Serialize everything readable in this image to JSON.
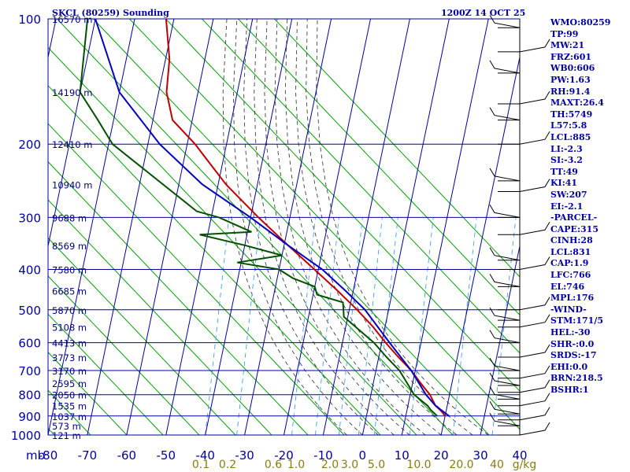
{
  "header": {
    "station": "SKCL (80259) Sounding",
    "time": "1200Z 14 OCT 25"
  },
  "colors": {
    "grid": "#0000a0",
    "dry_adiabat": "#00a000",
    "moist_adiabat": "#404040",
    "mixing_ratio": "#40a0ff",
    "temperature": "#c00000",
    "dewpoint": "#005000",
    "parcel": "#0000c0"
  },
  "chart_data": {
    "type": "skew-t",
    "title": "SKCL (80259) Sounding",
    "pressure_axis": {
      "unit": "mb",
      "ticks": [
        100,
        200,
        300,
        400,
        500,
        600,
        700,
        800,
        900,
        1000
      ],
      "range": [
        100,
        1000
      ]
    },
    "height_labels": [
      {
        "p": 100,
        "label": "16570 m"
      },
      {
        "p": 150,
        "label": "14190 m"
      },
      {
        "p": 200,
        "label": "12410 m"
      },
      {
        "p": 250,
        "label": "10940 m"
      },
      {
        "p": 300,
        "label": "9688 m"
      },
      {
        "p": 350,
        "label": "8569 m"
      },
      {
        "p": 400,
        "label": "7580 m"
      },
      {
        "p": 450,
        "label": "6685 m"
      },
      {
        "p": 500,
        "label": "5870 m"
      },
      {
        "p": 550,
        "label": "5108 m"
      },
      {
        "p": 600,
        "label": "4413 m"
      },
      {
        "p": 650,
        "label": "3773 m"
      },
      {
        "p": 700,
        "label": "3170 m"
      },
      {
        "p": 750,
        "label": "2595 m"
      },
      {
        "p": 800,
        "label": "2050 m"
      },
      {
        "p": 850,
        "label": "1535 m"
      },
      {
        "p": 900,
        "label": "1037 m"
      },
      {
        "p": 950,
        "label": "573 m"
      },
      {
        "p": 1000,
        "label": "121 m"
      }
    ],
    "temperature_axis": {
      "unit_label": "mb",
      "ticks": [
        -80,
        -70,
        -60,
        -50,
        -40,
        -30,
        -20,
        -10,
        0,
        10,
        20,
        30,
        40
      ],
      "labels": [
        "-80",
        "-70",
        "-60",
        "-50",
        "-40",
        "-30",
        "-20",
        "-10",
        "0",
        "10",
        "20",
        "30",
        "40"
      ]
    },
    "mixing_ratio_labels": [
      "0.1",
      "0.2",
      "0.6",
      "1.0",
      "2.0",
      "3.0",
      "5.0",
      "10.0",
      "20.0",
      "40",
      "g/kg"
    ],
    "series": [
      {
        "name": "temperature",
        "points": [
          {
            "p": 100,
            "t": -72
          },
          {
            "p": 125,
            "t": -69
          },
          {
            "p": 150,
            "t": -68
          },
          {
            "p": 175,
            "t": -65
          },
          {
            "p": 200,
            "t": -58
          },
          {
            "p": 250,
            "t": -48
          },
          {
            "p": 300,
            "t": -38
          },
          {
            "p": 350,
            "t": -29
          },
          {
            "p": 400,
            "t": -21
          },
          {
            "p": 450,
            "t": -14
          },
          {
            "p": 500,
            "t": -8
          },
          {
            "p": 550,
            "t": -3
          },
          {
            "p": 600,
            "t": 1
          },
          {
            "p": 650,
            "t": 5
          },
          {
            "p": 700,
            "t": 9
          },
          {
            "p": 750,
            "t": 12
          },
          {
            "p": 800,
            "t": 15
          },
          {
            "p": 850,
            "t": 17
          },
          {
            "p": 880,
            "t": 19
          },
          {
            "p": 900,
            "t": 20
          }
        ]
      },
      {
        "name": "dewpoint",
        "points": [
          {
            "p": 100,
            "t": -92
          },
          {
            "p": 150,
            "t": -90
          },
          {
            "p": 175,
            "t": -84
          },
          {
            "p": 200,
            "t": -79
          },
          {
            "p": 250,
            "t": -64
          },
          {
            "p": 290,
            "t": -54
          },
          {
            "p": 300,
            "t": -48
          },
          {
            "p": 325,
            "t": -39
          },
          {
            "p": 330,
            "t": -52
          },
          {
            "p": 350,
            "t": -40
          },
          {
            "p": 370,
            "t": -30
          },
          {
            "p": 385,
            "t": -41
          },
          {
            "p": 400,
            "t": -30
          },
          {
            "p": 420,
            "t": -26
          },
          {
            "p": 440,
            "t": -20
          },
          {
            "p": 460,
            "t": -19
          },
          {
            "p": 480,
            "t": -12
          },
          {
            "p": 520,
            "t": -11
          },
          {
            "p": 600,
            "t": -2
          },
          {
            "p": 650,
            "t": 2
          },
          {
            "p": 700,
            "t": 6
          },
          {
            "p": 800,
            "t": 11
          },
          {
            "p": 850,
            "t": 15
          },
          {
            "p": 870,
            "t": 16
          },
          {
            "p": 900,
            "t": 18
          }
        ]
      },
      {
        "name": "parcel",
        "points": [
          {
            "p": 100,
            "t": -90
          },
          {
            "p": 150,
            "t": -80
          },
          {
            "p": 200,
            "t": -67
          },
          {
            "p": 250,
            "t": -54
          },
          {
            "p": 300,
            "t": -40
          },
          {
            "p": 350,
            "t": -29
          },
          {
            "p": 400,
            "t": -19
          },
          {
            "p": 450,
            "t": -12
          },
          {
            "p": 500,
            "t": -6
          },
          {
            "p": 600,
            "t": 2
          },
          {
            "p": 700,
            "t": 9
          },
          {
            "p": 800,
            "t": 14
          },
          {
            "p": 850,
            "t": 17
          },
          {
            "p": 900,
            "t": 21
          }
        ]
      }
    ],
    "wind_barbs_pressure": [
      105,
      120,
      135,
      160,
      175,
      200,
      245,
      260,
      300,
      330,
      380,
      400,
      440,
      500,
      530,
      550,
      600,
      650,
      700,
      730,
      760,
      790,
      820,
      850,
      890,
      920,
      950,
      1000
    ]
  },
  "indices": [
    "WMO:80259",
    "TP:99",
    "MW:21",
    "FRZ:601",
    "WB0:606",
    "PW:1.63",
    "RH:91.4",
    "MAXT:26.4",
    "TH:5749",
    "L57:5.8",
    "LCL:885",
    "LI:-2.3",
    "SI:-3.2",
    "TT:49",
    "KI:41",
    "SW:207",
    "EI:-2.1",
    "-PARCEL-",
    "CAPE:315",
    "CINH:28",
    "LCL:831",
    "CAP:1.9",
    "LFC:766",
    "EL:746",
    "MPL:176",
    "-WIND-",
    "STM:171/5",
    "HEL:-30",
    "SHR-:0.0",
    "SRDS:-17",
    "EHI:0.0",
    "BRN:218.5",
    "BSHR:1"
  ]
}
